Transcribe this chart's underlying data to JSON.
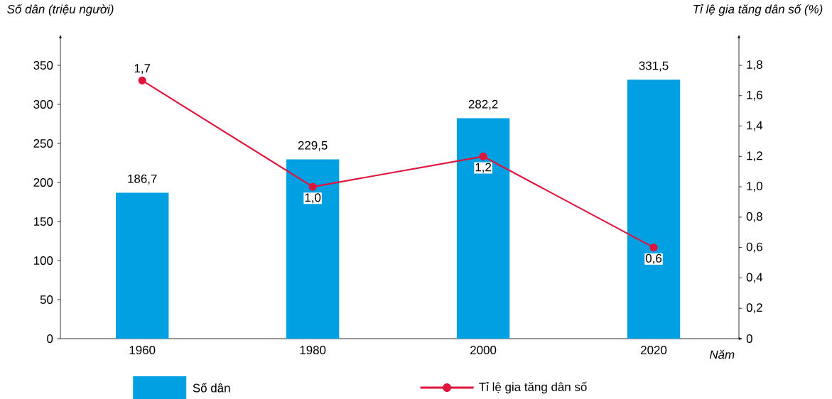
{
  "chart_data": {
    "type": "bar",
    "categories": [
      "1960",
      "1980",
      "2000",
      "2020"
    ],
    "xlabel": "*Năm*",
    "ylabel": "*Số dân (triệu người)*",
    "y2label": "*Tỉ lệ gia tăng dân số (%)*",
    "ylim": [
      0,
      385
    ],
    "yticks": [
      0,
      50,
      100,
      150,
      200,
      250,
      300,
      350
    ],
    "y2lim": [
      0,
      1.98
    ],
    "y2ticks": [
      {
        "value": 0,
        "label": "0"
      },
      {
        "value": 0.2,
        "label": "0,2"
      },
      {
        "value": 0.4,
        "label": "0,4"
      },
      {
        "value": 0.6,
        "label": "0,6"
      },
      {
        "value": 0.8,
        "label": "0,8"
      },
      {
        "value": 1.0,
        "label": "1,0"
      },
      {
        "value": 1.2,
        "label": "1,2"
      },
      {
        "value": 1.4,
        "label": "1,4"
      },
      {
        "value": 1.6,
        "label": "1,6"
      },
      {
        "value": 1.8,
        "label": "1,8"
      }
    ],
    "legend": "bottom",
    "grid": false,
    "series": [
      {
        "name": "Số dân",
        "color": "#00a0e3",
        "values": [
          186.7,
          229.5,
          282.2,
          331.5
        ],
        "value_labels": [
          "186,7",
          "229,5",
          "282,2",
          "331,5"
        ]
      },
      {
        "name": "Tỉ lệ gia tăng dân số",
        "type": "line",
        "axis": "y2",
        "marker": "circle",
        "color": "#e0143c",
        "values": [
          1.7,
          1.0,
          1.2,
          0.6
        ],
        "value_labels": [
          "1,7",
          "1,0",
          "1,2",
          "0,6"
        ]
      }
    ]
  }
}
